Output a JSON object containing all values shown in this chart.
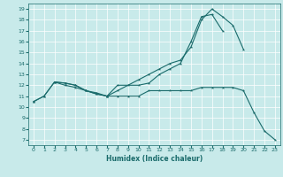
{
  "xlabel": "Humidex (Indice chaleur)",
  "bg_color": "#c8eaea",
  "grid_color": "#ffffff",
  "line_color": "#1a6b6b",
  "xlim": [
    -0.5,
    23.5
  ],
  "ylim": [
    6.5,
    19.5
  ],
  "xticks": [
    0,
    1,
    2,
    3,
    4,
    5,
    6,
    7,
    8,
    9,
    10,
    11,
    12,
    13,
    14,
    15,
    16,
    17,
    18,
    19,
    20,
    21,
    22,
    23
  ],
  "yticks": [
    7,
    8,
    9,
    10,
    11,
    12,
    13,
    14,
    15,
    16,
    17,
    18,
    19
  ],
  "line1_x": [
    0,
    1,
    2,
    3,
    4,
    5,
    6,
    7,
    8,
    9,
    10,
    11,
    12,
    13,
    14,
    15,
    16,
    17,
    18,
    19,
    20
  ],
  "line1_y": [
    10.5,
    11.0,
    12.3,
    12.2,
    12.0,
    11.5,
    11.2,
    11.0,
    11.5,
    12.0,
    12.5,
    13.0,
    13.5,
    14.0,
    14.3,
    15.5,
    18.0,
    19.0,
    18.3,
    17.5,
    15.3
  ],
  "line2_x": [
    2,
    3,
    4,
    5,
    6,
    7,
    8,
    10,
    11,
    12,
    13,
    14,
    15,
    16,
    17,
    18
  ],
  "line2_y": [
    12.3,
    12.2,
    12.0,
    11.5,
    11.2,
    11.0,
    12.0,
    12.0,
    12.2,
    13.0,
    13.5,
    14.0,
    16.0,
    18.3,
    18.5,
    17.0
  ],
  "line3_x": [
    0,
    1,
    2,
    3,
    4,
    5,
    6,
    7,
    8,
    9,
    10,
    11,
    12,
    13,
    14,
    15,
    16,
    17,
    18,
    19,
    20,
    21,
    22,
    23
  ],
  "line3_y": [
    10.5,
    11.0,
    12.3,
    12.0,
    11.8,
    11.5,
    11.3,
    11.0,
    11.0,
    11.0,
    11.0,
    11.5,
    11.5,
    11.5,
    11.5,
    11.5,
    11.8,
    11.8,
    11.8,
    11.8,
    11.5,
    9.5,
    7.8,
    7.0
  ]
}
